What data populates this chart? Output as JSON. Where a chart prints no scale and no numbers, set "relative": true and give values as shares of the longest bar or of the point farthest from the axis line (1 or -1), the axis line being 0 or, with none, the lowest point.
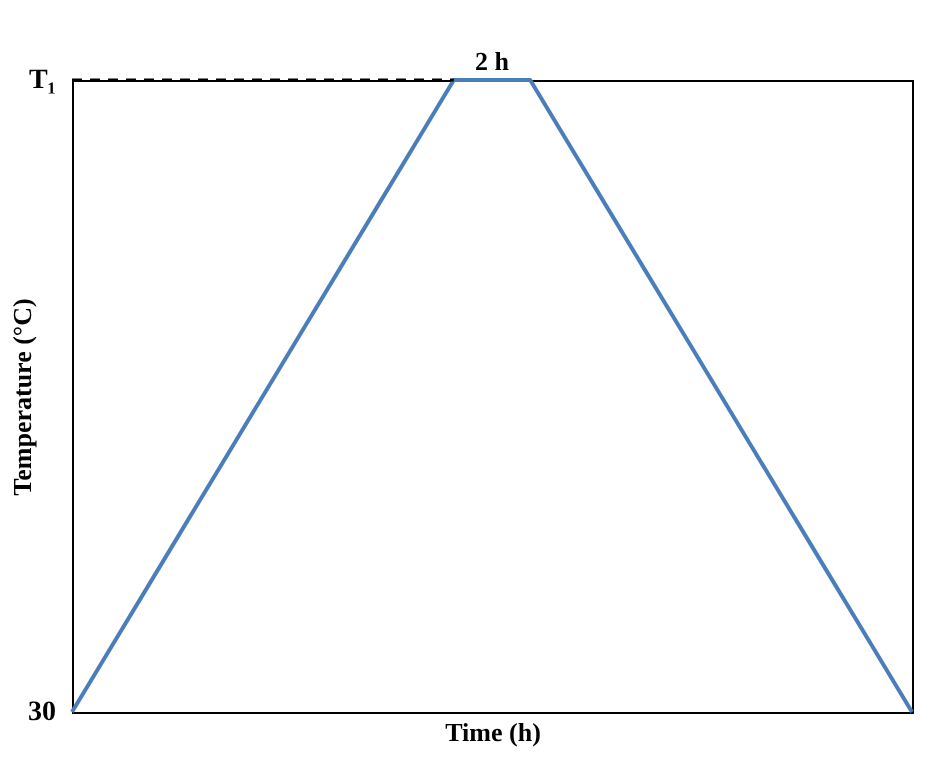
{
  "chart_data": {
    "type": "line",
    "relative": true,
    "xlabel": "Time (h)",
    "ylabel": "Temperature (°C)",
    "categories": [
      null,
      null,
      null,
      null,
      null,
      null,
      null,
      null,
      null,
      null,
      null,
      null,
      null,
      null,
      null,
      null,
      null,
      null,
      null,
      null,
      null,
      null,
      null
    ],
    "series": [
      {
        "color": "#4a7ebb",
        "values": [
          0,
          0.1,
          0.2,
          0.3,
          0.4,
          0.5,
          0.6,
          0.7,
          0.8,
          0.9,
          1,
          1,
          1,
          0.9,
          0.8,
          0.7,
          0.6,
          0.5,
          0.4,
          0.3,
          0.2,
          0.1,
          0
        ]
      }
    ],
    "ref_lines": [
      {
        "axis": "y",
        "value": 1,
        "label": "T₁",
        "color": "#000000",
        "line_style": "dashed"
      }
    ],
    "annotations": [
      "2 h",
      "30"
    ]
  }
}
